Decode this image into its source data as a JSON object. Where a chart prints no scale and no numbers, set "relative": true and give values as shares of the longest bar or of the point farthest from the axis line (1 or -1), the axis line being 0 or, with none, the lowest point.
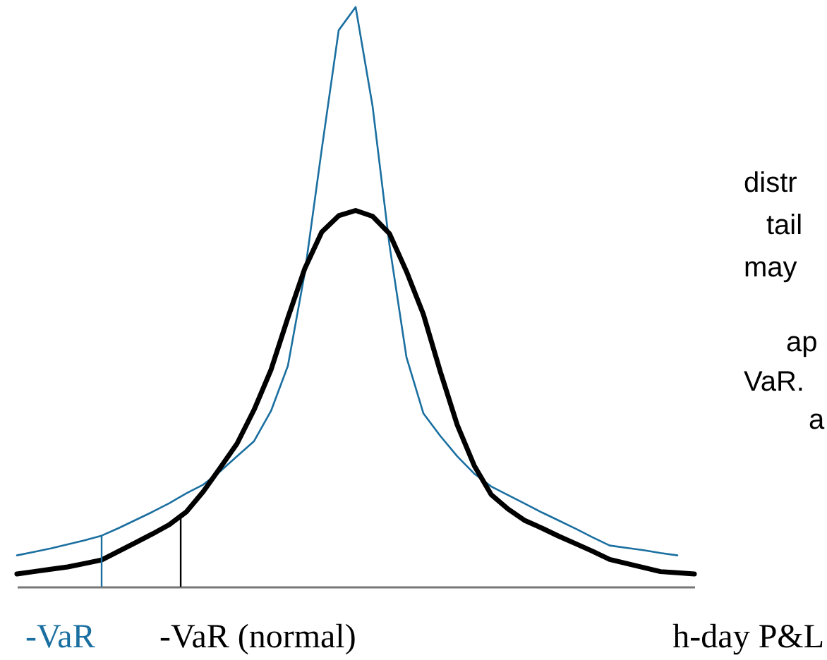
{
  "chart_data": {
    "type": "line",
    "relative": true,
    "xlabel": "h-day P&L",
    "line_style": "solid",
    "categories": [
      null,
      null,
      null,
      null,
      null,
      null,
      null,
      null,
      null,
      null,
      null,
      null,
      null,
      null,
      null,
      null,
      null,
      null,
      null,
      null,
      null,
      null,
      null,
      null,
      null,
      null,
      null,
      null,
      null,
      null,
      null,
      null,
      null,
      null,
      null,
      null,
      null,
      null,
      null,
      null,
      null
    ],
    "series": [
      {
        "color": "#1a6fa0",
        "values": [
          0.054,
          0.06,
          0.066,
          0.073,
          0.08,
          0.088,
          0.101,
          0.115,
          0.129,
          0.144,
          0.161,
          0.176,
          0.199,
          0.225,
          0.251,
          0.303,
          0.381,
          0.542,
          0.755,
          0.96,
          1,
          0.829,
          0.589,
          0.396,
          0.299,
          0.26,
          0.225,
          0.195,
          0.173,
          0.158,
          0.143,
          0.128,
          0.114,
          0.1,
          0.085,
          0.071,
          0.067,
          0.063,
          0.058,
          0.054,
          null
        ]
      },
      {
        "color": "#000000",
        "values": [
          0.022,
          0.026,
          0.03,
          0.034,
          0.04,
          0.046,
          0.061,
          0.076,
          0.091,
          0.107,
          0.129,
          0.164,
          0.205,
          0.247,
          0.305,
          0.374,
          0.464,
          0.549,
          0.612,
          0.64,
          0.649,
          0.639,
          0.609,
          0.544,
          0.47,
          0.371,
          0.279,
          0.209,
          0.159,
          0.134,
          0.114,
          0.101,
          0.087,
          0.074,
          0.061,
          0.047,
          0.04,
          0.033,
          0.026,
          0.024,
          0.022
        ]
      }
    ],
    "annotations": [
      "-VaR",
      "-VaR (normal)",
      "distr",
      "tail",
      "may",
      "ap",
      "VaR.",
      "a"
    ]
  }
}
